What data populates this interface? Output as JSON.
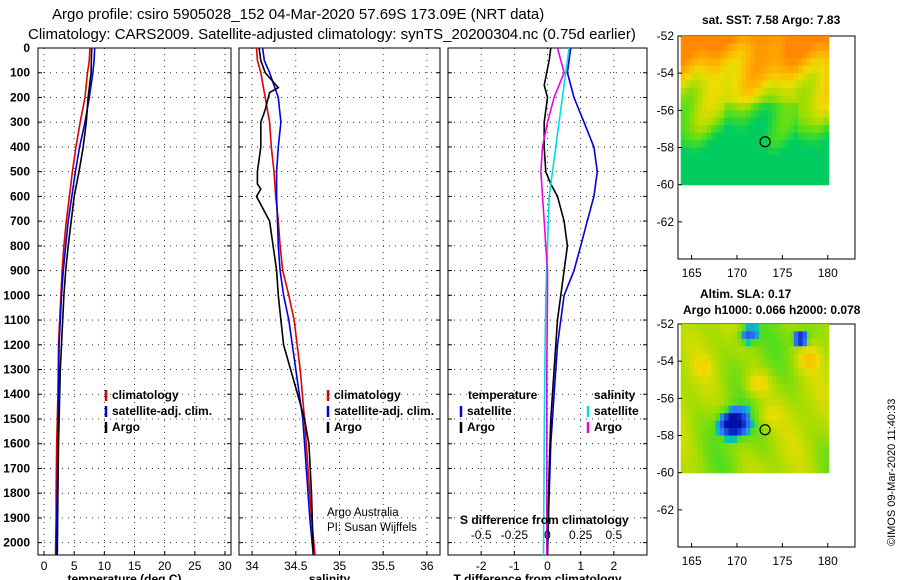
{
  "title": {
    "line1": "Argo profile: csiro 5905028_152 04-Mar-2020 57.69S 173.09E (NRT data)",
    "line2": "Climatology: CARS2009. Satellite-adjusted climatology: synTS_20200304.nc (0.75d earlier)"
  },
  "copyright": "©IMOS 09-Mar-2020 11:40:33",
  "colors": {
    "climatology": "#e00000",
    "satellite": "#0000dd",
    "argo": "#000000",
    "s_satellite": "#00dddd",
    "s_argo": "#ee00ee"
  },
  "depth_axis": {
    "ylim": [
      0,
      2050
    ],
    "ticks": [
      0,
      100,
      200,
      300,
      400,
      500,
      600,
      700,
      800,
      900,
      1000,
      1100,
      1200,
      1300,
      1400,
      1500,
      1600,
      1700,
      1800,
      1900,
      2000
    ]
  },
  "chart_data": [
    {
      "id": "temperature",
      "type": "line",
      "xlabel": "temperature (deg C)",
      "xlim": [
        -1,
        31
      ],
      "xticks": [
        0,
        5,
        10,
        15,
        20,
        25,
        30
      ],
      "legend": [
        "climatology",
        "satellite-adj. clim.",
        "Argo"
      ],
      "series": [
        {
          "name": "climatology",
          "x": [
            7.6,
            7.5,
            7.2,
            6.8,
            6.0,
            5.3,
            4.7,
            4.2,
            3.7,
            3.3,
            3.0,
            2.8,
            2.6,
            2.4,
            2.3,
            2.2,
            2.1,
            2.0,
            2.0,
            1.9
          ],
          "y": [
            0,
            50,
            100,
            200,
            300,
            400,
            500,
            600,
            700,
            800,
            900,
            1000,
            1100,
            1200,
            1400,
            1500,
            1600,
            1800,
            1900,
            2050
          ]
        },
        {
          "name": "satellite-adj. clim.",
          "x": [
            8.4,
            8.3,
            8.1,
            7.5,
            6.8,
            5.9,
            5.2,
            4.6,
            4.0,
            3.6,
            3.2,
            2.9,
            2.7,
            2.5,
            2.4,
            2.3,
            2.2,
            2.1,
            2.0
          ],
          "y": [
            0,
            50,
            100,
            200,
            300,
            400,
            500,
            600,
            700,
            800,
            900,
            1000,
            1100,
            1200,
            1400,
            1600,
            1800,
            1900,
            2050
          ]
        },
        {
          "name": "Argo",
          "x": [
            7.9,
            7.85,
            7.8,
            7.3,
            7.0,
            6.5,
            5.8,
            5.0,
            4.5,
            4.0,
            3.6,
            3.3,
            3.1,
            2.9,
            2.7,
            2.6,
            2.5,
            2.4,
            2.3,
            2.2
          ],
          "y": [
            0,
            50,
            100,
            200,
            300,
            400,
            500,
            600,
            700,
            800,
            900,
            1000,
            1100,
            1200,
            1300,
            1400,
            1500,
            1600,
            1800,
            2050
          ]
        }
      ]
    },
    {
      "id": "salinity",
      "type": "line",
      "xlabel": "salinity",
      "xlim": [
        33.85,
        36.15
      ],
      "xticks": [
        34,
        34.5,
        35,
        35.5,
        36
      ],
      "legend": [
        "climatology",
        "satellite-adj. clim.",
        "Argo"
      ],
      "series": [
        {
          "name": "climatology",
          "x": [
            34.05,
            34.06,
            34.1,
            34.15,
            34.2,
            34.22,
            34.25,
            34.27,
            34.3,
            34.32,
            34.35,
            34.42,
            34.48,
            34.55,
            34.6,
            34.64,
            34.68,
            34.72
          ],
          "y": [
            0,
            50,
            100,
            200,
            300,
            400,
            500,
            600,
            700,
            800,
            900,
            1000,
            1100,
            1300,
            1500,
            1700,
            1900,
            2050
          ]
        },
        {
          "name": "satellite-adj. clim.",
          "x": [
            34.12,
            34.14,
            34.2,
            34.3,
            34.33,
            34.3,
            34.28,
            34.28,
            34.29,
            34.3,
            34.32,
            34.36,
            34.42,
            34.5,
            34.58,
            34.62,
            34.66,
            34.7
          ],
          "y": [
            0,
            50,
            100,
            200,
            300,
            400,
            500,
            600,
            700,
            800,
            900,
            1000,
            1100,
            1300,
            1500,
            1700,
            1900,
            2050
          ]
        },
        {
          "name": "Argo",
          "x": [
            34.08,
            34.1,
            34.15,
            34.3,
            34.2,
            34.15,
            34.1,
            34.1,
            34.06,
            34.06,
            34.1,
            34.05,
            34.2,
            34.24,
            34.28,
            34.3,
            34.33,
            34.36,
            34.44,
            34.52,
            34.6,
            34.65,
            34.68,
            34.7
          ],
          "y": [
            0,
            50,
            100,
            160,
            180,
            250,
            300,
            400,
            500,
            550,
            570,
            600,
            700,
            800,
            900,
            1000,
            1100,
            1200,
            1300,
            1400,
            1500,
            1600,
            1800,
            2050
          ]
        }
      ]
    },
    {
      "id": "difference",
      "type": "line",
      "xlabel": "T difference from climatology",
      "xlabel_top": "S difference from climatology",
      "xlim": [
        -3,
        3
      ],
      "xticks": [
        -2,
        -1,
        0,
        1,
        2
      ],
      "xticks_top": [
        -0.5,
        -0.25,
        0,
        0.25,
        0.5
      ],
      "xticklabels_top": [
        "-0.5",
        "-0.25",
        "0",
        "0.25",
        "0.5"
      ],
      "legend": {
        "temperature_title": "temperature",
        "salinity_title": "salinity",
        "items": [
          "satellite",
          "Argo",
          "satellite",
          "Argo"
        ]
      },
      "series": [
        {
          "name": "temperature satellite",
          "x": [
            0.7,
            0.65,
            0.6,
            0.8,
            1.1,
            1.4,
            1.5,
            1.4,
            1.2,
            1.0,
            0.8,
            0.5,
            0.3,
            0.2,
            0.1,
            0.05,
            0.0
          ],
          "y": [
            0,
            50,
            100,
            200,
            300,
            400,
            500,
            600,
            700,
            800,
            900,
            1000,
            1200,
            1400,
            1600,
            1800,
            2050
          ]
        },
        {
          "name": "temperature Argo",
          "x": [
            0.1,
            0.05,
            -0.1,
            0.0,
            -0.1,
            -0.1,
            -0.05,
            0.1,
            0.3,
            0.5,
            0.6,
            0.5,
            0.4,
            0.3,
            0.25,
            0.2,
            0.1,
            0.05,
            0.02,
            0.0
          ],
          "y": [
            0,
            50,
            150,
            200,
            300,
            400,
            500,
            550,
            600,
            700,
            800,
            900,
            1000,
            1100,
            1200,
            1300,
            1500,
            1700,
            1900,
            2050
          ]
        },
        {
          "name": "salinity satellite",
          "x": [
            0.65,
            0.6,
            0.55,
            0.45,
            0.35,
            0.25,
            0.15,
            0.05,
            0.0,
            -0.05,
            -0.08,
            -0.1,
            -0.12
          ],
          "y": [
            0,
            50,
            100,
            200,
            300,
            400,
            500,
            600,
            800,
            1000,
            1300,
            1600,
            2050
          ]
        },
        {
          "name": "salinity Argo",
          "x": [
            0.3,
            0.4,
            0.5,
            0.2,
            0.0,
            -0.15,
            -0.2,
            -0.15,
            -0.1,
            -0.05,
            0.0,
            0.0,
            -0.02,
            -0.02
          ],
          "y": [
            0,
            50,
            100,
            200,
            300,
            400,
            500,
            600,
            700,
            800,
            900,
            1000,
            1300,
            2050
          ]
        }
      ]
    },
    {
      "id": "sst_map",
      "type": "heatmap",
      "title": "sat. SST: 7.58 Argo: 7.83",
      "xlim": [
        163.5,
        183
      ],
      "ylim": [
        -64,
        -52
      ],
      "xticks": [
        165,
        170,
        175,
        180
      ],
      "yticks": [
        -52,
        -54,
        -56,
        -58,
        -60,
        -62
      ],
      "marker": {
        "lon": 173.09,
        "lat": -57.69
      }
    },
    {
      "id": "sla_map",
      "type": "heatmap",
      "title": "Altim. SLA: 0.17",
      "subtitle": "Argo h1000: 0.066 h2000: 0.078",
      "xlim": [
        163.5,
        183
      ],
      "ylim": [
        -64,
        -52
      ],
      "xticks": [
        165,
        170,
        175,
        180
      ],
      "yticks": [
        -52,
        -54,
        -56,
        -58,
        -60,
        -62
      ],
      "marker": {
        "lon": 173.09,
        "lat": -57.69
      }
    }
  ],
  "footnote": {
    "line1": "Argo Australia",
    "line2": "PI: Susan Wijffels"
  }
}
